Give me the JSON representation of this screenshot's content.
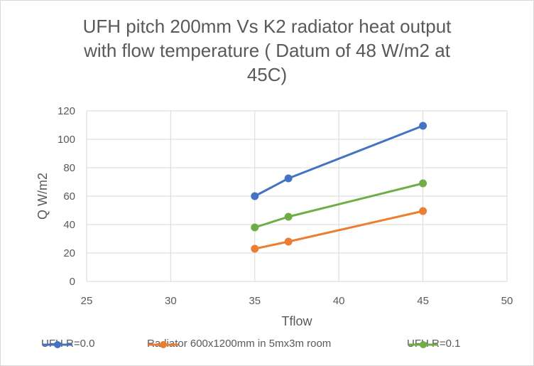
{
  "chart_data": {
    "type": "line",
    "title_lines": [
      "UFH pitch 200mm Vs K2 radiator heat output",
      "with flow temperature ( Datum of 48 W/m2 at",
      "45C)"
    ],
    "xlabel": "Tflow",
    "ylabel": "Q W/m2",
    "xlim": [
      25,
      50
    ],
    "ylim": [
      0,
      120
    ],
    "xticks": [
      "25",
      "30",
      "35",
      "40",
      "45",
      "50"
    ],
    "yticks": [
      "0",
      "20",
      "40",
      "60",
      "80",
      "100",
      "120"
    ],
    "grid": true,
    "legend_position": "bottom",
    "series": [
      {
        "name": "UFH R=0.0",
        "color": "#4472c4",
        "x": [
          35,
          37,
          45
        ],
        "y": [
          60,
          72.5,
          109.5
        ]
      },
      {
        "name": "Radiator 600x1200mm in 5mx3m room",
        "color": "#ed7d31",
        "x": [
          35,
          37,
          45
        ],
        "y": [
          23,
          28,
          49.5
        ]
      },
      {
        "name": "UFH R=0.1",
        "color": "#70ad47",
        "x": [
          35,
          37,
          45
        ],
        "y": [
          38,
          45.5,
          69
        ]
      }
    ]
  }
}
